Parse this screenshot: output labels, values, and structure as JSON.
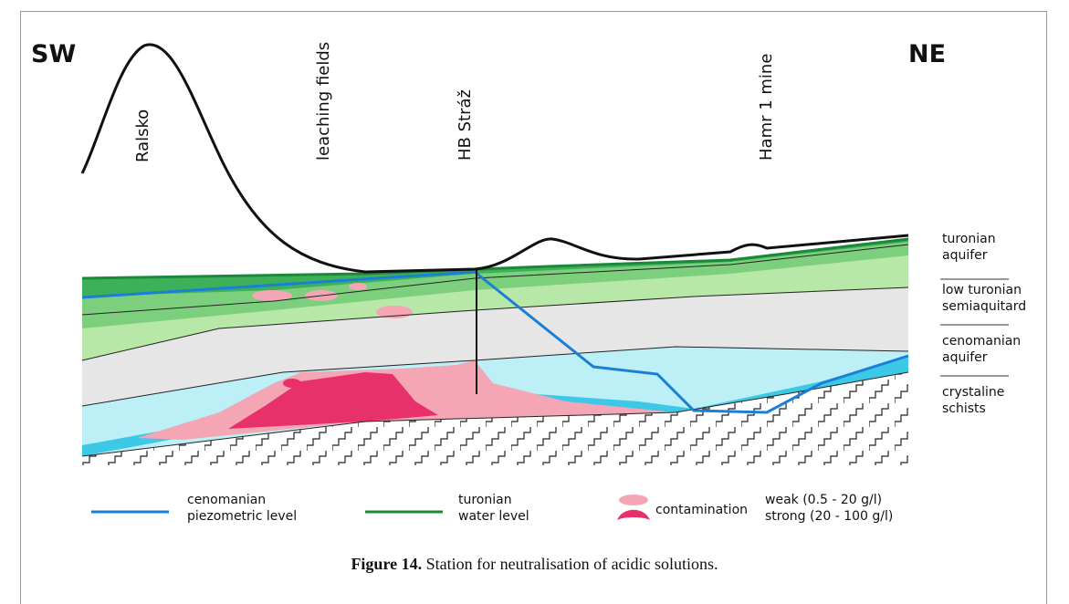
{
  "figure": {
    "label": "Figure 14.",
    "caption": "Station for neutralisation of acidic solutions."
  },
  "directions": {
    "left": "SW",
    "right": "NE"
  },
  "locations": [
    "Ralsko",
    "leaching fields",
    "HB Stráž",
    "Hamr 1  mine"
  ],
  "layers": [
    {
      "line1": "turonian",
      "line2": "aquifer"
    },
    {
      "line1": "low turonian",
      "line2": "semiaquitard"
    },
    {
      "line1": "cenomanian",
      "line2": "aquifer"
    },
    {
      "line1": "crystaline",
      "line2": "schists"
    }
  ],
  "legend": {
    "cenomanian": {
      "line1": "cenomanian",
      "line2": "piezometric level",
      "color": "#1a7fd6"
    },
    "turonian": {
      "line1": "turonian",
      "line2": "water level",
      "color": "#1a8a3a"
    },
    "contamination": {
      "label": "contamination",
      "weak": "weak (0.5 - 20 g/l)",
      "strong": "strong (20 - 100 g/l)",
      "weak_color": "#f4a6b5",
      "strong_color": "#e8306a"
    }
  },
  "colors": {
    "turonian_aquifer_dark": "#3fb05a",
    "turonian_aquifer_light": "#b8e8a8",
    "semiaquitard": "#e6e6e6",
    "cenomanian_aquifer": "#bdf0f6",
    "cenomanian_deep": "#3cc8e6"
  }
}
